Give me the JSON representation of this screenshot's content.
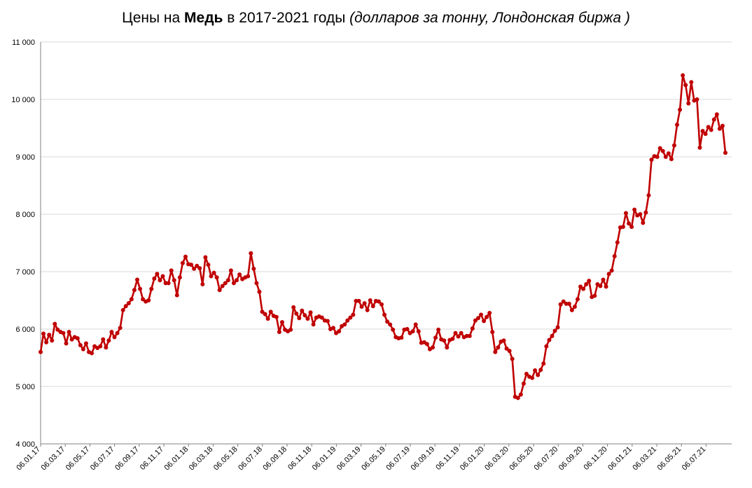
{
  "title": {
    "part1": "Цены на ",
    "bold": "Медь",
    "part2": " в 2017-2021 годы ",
    "italic": "(долларов за тонну, Лондонская биржа )"
  },
  "colors": {
    "series": "#c00000",
    "grid": "#d9d9d9",
    "axis": "#808080"
  },
  "chart_data": {
    "type": "line",
    "title": "Цены на Медь в 2017-2021 годы (долларов за тонну, Лондонская биржа )",
    "xlabel": "",
    "ylabel": "",
    "ylim": [
      4000,
      11000
    ],
    "y_ticks": [
      4000,
      5000,
      6000,
      7000,
      8000,
      9000,
      10000,
      11000
    ],
    "y_tick_labels": [
      "4 000",
      "5 000",
      "6 000",
      "7 000",
      "8 000",
      "9 000",
      "10 000",
      "11 000"
    ],
    "x_tick_labels": [
      "06.01.17",
      "06.03.17",
      "06.05.17",
      "06.07.17",
      "06.09.17",
      "06.11.17",
      "06.01.18",
      "06.03.18",
      "06.05.18",
      "06.07.18",
      "06.09.18",
      "06.11.18",
      "06.01.19",
      "06.03.19",
      "06.05.19",
      "06.07.19",
      "06.09.19",
      "06.11.19",
      "06.01.20",
      "06.03.20",
      "06.05.20",
      "06.07.20",
      "06.09.20",
      "06.11.20",
      "06.01.21",
      "06.03.21",
      "06.05.21",
      "06.07.21"
    ],
    "grid": "horizontal",
    "legend": "none",
    "series": [
      {
        "values": [
          5600,
          5920,
          5770,
          5900,
          5800,
          6090,
          5990,
          5950,
          5930,
          5750,
          5950,
          5820,
          5860,
          5840,
          5720,
          5650,
          5750,
          5600,
          5580,
          5700,
          5670,
          5700,
          5820,
          5680,
          5800,
          5950,
          5860,
          5930,
          6020,
          6330,
          6400,
          6450,
          6520,
          6680,
          6860,
          6700,
          6520,
          6480,
          6500,
          6700,
          6880,
          6960,
          6850,
          6920,
          6800,
          6800,
          7020,
          6850,
          6590,
          6900,
          7150,
          7260,
          7130,
          7120,
          7050,
          7100,
          7060,
          6780,
          7250,
          7120,
          6920,
          6980,
          6900,
          6680,
          6750,
          6800,
          6850,
          7020,
          6800,
          6850,
          6950,
          6870,
          6900,
          6920,
          7320,
          7050,
          6800,
          6650,
          6300,
          6260,
          6180,
          6300,
          6230,
          6210,
          5950,
          6120,
          5990,
          5960,
          5990,
          6380,
          6270,
          6190,
          6320,
          6240,
          6180,
          6290,
          6080,
          6200,
          6220,
          6200,
          6150,
          6140,
          6000,
          6020,
          5930,
          5960,
          6050,
          6080,
          6150,
          6200,
          6250,
          6490,
          6490,
          6390,
          6450,
          6330,
          6500,
          6400,
          6490,
          6480,
          6430,
          6250,
          6130,
          6080,
          5990,
          5860,
          5840,
          5850,
          5990,
          6000,
          5930,
          5960,
          6080,
          5960,
          5760,
          5770,
          5740,
          5650,
          5680,
          5850,
          5990,
          5820,
          5800,
          5680,
          5810,
          5830,
          5930,
          5870,
          5930,
          5860,
          5880,
          5880,
          6010,
          6150,
          6190,
          6250,
          6140,
          6210,
          6280,
          5950,
          5600,
          5680,
          5780,
          5800,
          5660,
          5620,
          5480,
          4820,
          4800,
          4860,
          5050,
          5220,
          5170,
          5150,
          5280,
          5200,
          5290,
          5400,
          5700,
          5810,
          5880,
          5970,
          6030,
          6430,
          6480,
          6440,
          6440,
          6330,
          6390,
          6520,
          6740,
          6700,
          6780,
          6840,
          6560,
          6580,
          6780,
          6750,
          6860,
          6740,
          6960,
          7020,
          7270,
          7510,
          7770,
          7780,
          8020,
          7840,
          7780,
          8080,
          7980,
          8000,
          7850,
          8030,
          8330,
          8950,
          9010,
          9000,
          9150,
          9100,
          9000,
          9060,
          8960,
          9200,
          9560,
          9820,
          10420,
          10250,
          9930,
          10300,
          9980,
          10000,
          9160,
          9450,
          9400,
          9520,
          9470,
          9650,
          9740,
          9490,
          9540,
          9070
        ]
      }
    ]
  }
}
